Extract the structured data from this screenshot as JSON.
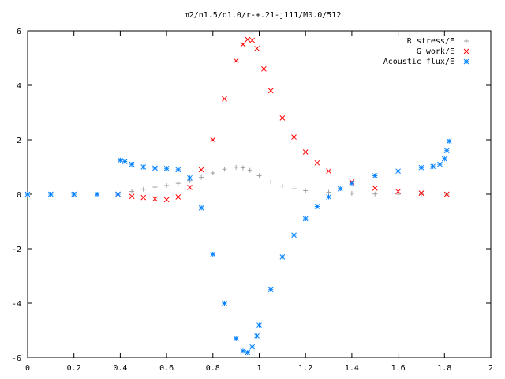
{
  "chart_data": {
    "type": "scatter",
    "title": "m2/n1.5/q1.0/r-+.21-j111/M0.0/512",
    "xlabel": "",
    "ylabel": "",
    "xlim": [
      0,
      2
    ],
    "ylim": [
      -6,
      6
    ],
    "xticks": [
      "0",
      "0.2",
      "0.4",
      "0.6",
      "0.8",
      "1",
      "1.2",
      "1.4",
      "1.6",
      "1.8",
      "2"
    ],
    "yticks": [
      "-6",
      "-4",
      "-2",
      "0",
      "2",
      "4",
      "6"
    ],
    "legend_position": "top-right",
    "grid": false,
    "series": [
      {
        "name": "R stress/E",
        "marker": "plus",
        "color": "#a0a0a0",
        "x": [
          0.0,
          0.2,
          0.39,
          0.45,
          0.5,
          0.55,
          0.6,
          0.65,
          0.7,
          0.75,
          0.8,
          0.85,
          0.9,
          0.93,
          0.96,
          1.0,
          1.05,
          1.1,
          1.15,
          1.2,
          1.3,
          1.4,
          1.5,
          1.6,
          1.7,
          1.81
        ],
        "y": [
          0.0,
          0.0,
          0.0,
          0.1,
          0.18,
          0.26,
          0.32,
          0.4,
          0.5,
          0.62,
          0.78,
          0.92,
          0.99,
          0.97,
          0.88,
          0.68,
          0.45,
          0.3,
          0.2,
          0.13,
          0.07,
          0.03,
          0.01,
          0.0,
          0.0,
          0.0
        ]
      },
      {
        "name": "G work/E",
        "marker": "cross",
        "color": "#ff0000",
        "x": [
          0.39,
          0.45,
          0.5,
          0.55,
          0.6,
          0.65,
          0.7,
          0.75,
          0.8,
          0.85,
          0.9,
          0.93,
          0.95,
          0.97,
          0.99,
          1.02,
          1.05,
          1.1,
          1.15,
          1.2,
          1.25,
          1.3,
          1.4,
          1.5,
          1.6,
          1.7,
          1.81
        ],
        "y": [
          0.0,
          -0.08,
          -0.12,
          -0.17,
          -0.2,
          -0.1,
          0.25,
          0.9,
          2.0,
          3.5,
          4.9,
          5.5,
          5.68,
          5.65,
          5.35,
          4.6,
          3.8,
          2.8,
          2.1,
          1.55,
          1.15,
          0.85,
          0.45,
          0.22,
          0.1,
          0.04,
          0.0
        ]
      },
      {
        "name": "Acoustic flux/E",
        "marker": "star",
        "color": "#0080ff",
        "x": [
          0.0,
          0.1,
          0.2,
          0.3,
          0.39,
          0.4,
          0.42,
          0.45,
          0.5,
          0.55,
          0.6,
          0.65,
          0.7,
          0.75,
          0.8,
          0.85,
          0.9,
          0.93,
          0.95,
          0.97,
          0.99,
          1.0,
          1.05,
          1.1,
          1.15,
          1.2,
          1.25,
          1.3,
          1.35,
          1.4,
          1.5,
          1.6,
          1.7,
          1.75,
          1.78,
          1.8,
          1.81,
          1.82
        ],
        "y": [
          0.0,
          0.0,
          0.0,
          0.0,
          0.0,
          1.25,
          1.2,
          1.1,
          1.0,
          0.96,
          0.95,
          0.9,
          0.6,
          -0.5,
          -2.2,
          -4.0,
          -5.3,
          -5.75,
          -5.8,
          -5.6,
          -5.2,
          -4.8,
          -3.5,
          -2.3,
          -1.5,
          -0.9,
          -0.45,
          -0.1,
          0.2,
          0.4,
          0.68,
          0.85,
          0.98,
          1.02,
          1.1,
          1.3,
          1.6,
          1.95
        ]
      }
    ]
  }
}
